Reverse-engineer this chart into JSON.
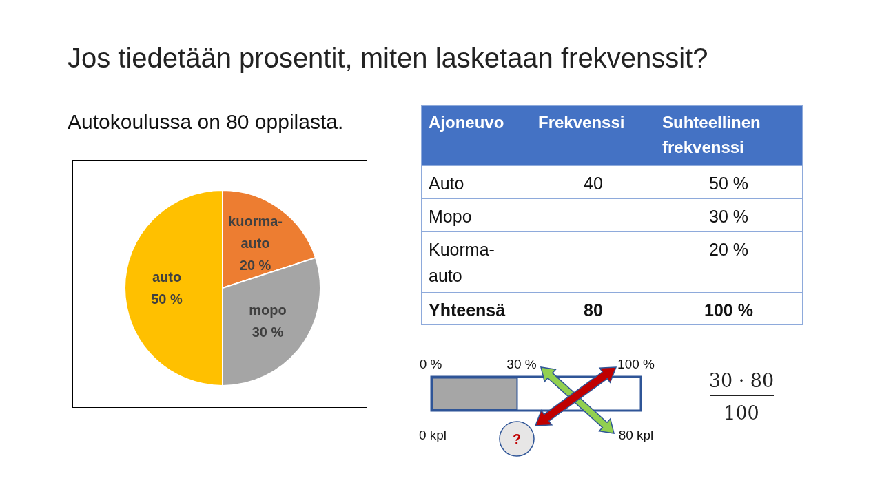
{
  "chart_data": [
    {
      "type": "pie",
      "title": "Jos tiedetään prosentit, miten lasketaan frekvenssit?",
      "subtitle": "Autokoulussa on 80 oppilasta.",
      "categories": [
        "kuorma-auto",
        "mopo",
        "auto"
      ],
      "values": [
        20,
        30,
        50
      ],
      "colors": [
        "#ed7d31",
        "#a5a5a5",
        "#ffc000"
      ],
      "value_labels": [
        "20 %",
        "30 %",
        "50 %"
      ]
    },
    {
      "type": "other",
      "categories": [
        "Ajoneuvo",
        "Frekvenssi",
        "Suhteellinen frekvenssi"
      ],
      "annotations": [
        "Auto",
        "40",
        "50 %",
        "Mopo",
        null,
        "30 %",
        "Kuorma-auto",
        null,
        "20 %",
        "Yhteensä",
        "80",
        "100 %"
      ]
    },
    {
      "type": "other",
      "annotations": [
        "0 %",
        "30 %",
        "100 %",
        "0 kpl",
        "80 kpl",
        "?",
        "30 · 80",
        "100"
      ]
    }
  ]
}
